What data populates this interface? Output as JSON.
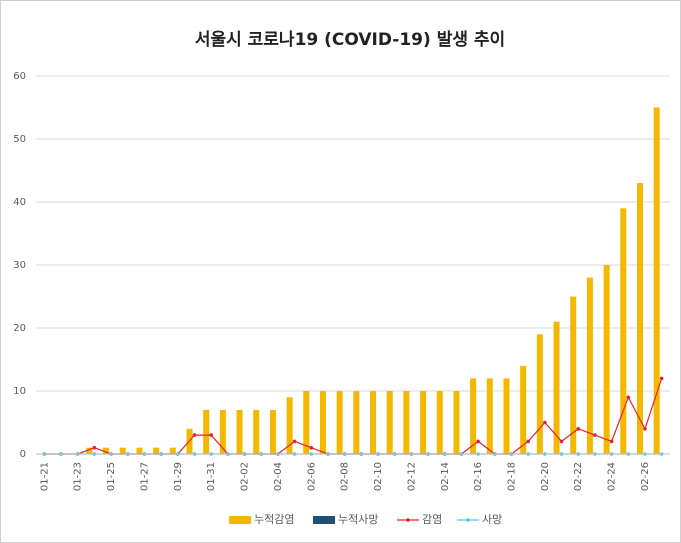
{
  "chart_data": {
    "type": "bar",
    "title": "서울시 코로나19 (COVID-19) 발생 추이",
    "categories": [
      "01-21",
      null,
      "01-23",
      null,
      "01-25",
      null,
      "01-27",
      null,
      "01-29",
      null,
      "01-31",
      null,
      "02-02",
      null,
      "02-04",
      null,
      "02-06",
      null,
      "02-08",
      null,
      "02-10",
      null,
      "02-12",
      null,
      "02-14",
      null,
      "02-16",
      null,
      "02-18",
      null,
      "02-20",
      null,
      "02-22",
      null,
      "02-24",
      null,
      "02-26",
      null
    ],
    "series": [
      {
        "name": "누적감염",
        "type": "bar",
        "color": "#f5b800",
        "values": [
          0,
          0,
          0,
          1,
          1,
          1,
          1,
          1,
          1,
          4,
          7,
          7,
          7,
          7,
          7,
          9,
          10,
          10,
          10,
          10,
          10,
          10,
          10,
          10,
          10,
          10,
          12,
          12,
          12,
          14,
          19,
          21,
          25,
          28,
          30,
          39,
          43,
          55
        ]
      },
      {
        "name": "누적사망",
        "type": "bar",
        "color": "#1f4e79",
        "values": [
          0,
          0,
          0,
          0,
          0,
          0,
          0,
          0,
          0,
          0,
          0,
          0,
          0,
          0,
          0,
          0,
          0,
          0,
          0,
          0,
          0,
          0,
          0,
          0,
          0,
          0,
          0,
          0,
          0,
          0,
          0,
          0,
          0,
          0,
          0,
          0,
          0,
          0
        ]
      },
      {
        "name": "감염",
        "type": "line",
        "color": "#e8222a",
        "values": [
          0,
          0,
          0,
          1,
          0,
          0,
          0,
          0,
          0,
          3,
          3,
          0,
          0,
          0,
          0,
          2,
          1,
          0,
          0,
          0,
          0,
          0,
          0,
          0,
          0,
          0,
          2,
          0,
          0,
          2,
          5,
          2,
          4,
          3,
          2,
          9,
          4,
          12
        ]
      },
      {
        "name": "사망",
        "type": "line",
        "color": "#4bc6e8",
        "values": [
          0,
          0,
          0,
          0,
          0,
          0,
          0,
          0,
          0,
          0,
          0,
          0,
          0,
          0,
          0,
          0,
          0,
          0,
          0,
          0,
          0,
          0,
          0,
          0,
          0,
          0,
          0,
          0,
          0,
          0,
          0,
          0,
          0,
          0,
          0,
          0,
          0,
          0
        ]
      }
    ],
    "ylim": [
      0,
      60
    ],
    "yticks": [
      0,
      10,
      20,
      30,
      40,
      50,
      60
    ],
    "grid": true,
    "legend": "bottom"
  }
}
